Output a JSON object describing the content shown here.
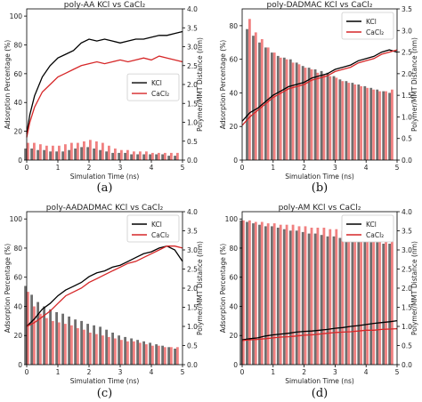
{
  "colors": {
    "kcl": "#000000",
    "cacl2": "#d62728",
    "bar_kcl": "#6e6e6e",
    "bar_cacl2": "#f08080"
  },
  "chart_data": [
    {
      "type": "bar+line",
      "title": "poly-AA KCl vs CaCl₂",
      "caption": "(a)",
      "xlabel": "Simulation Time (ns)",
      "ylabel": "Adsorption Percentage (%)",
      "y2label": "Polymer/MMT Distance (nm)",
      "xlim": [
        0,
        5
      ],
      "ylim": [
        0,
        105
      ],
      "y2lim": [
        0,
        4.0
      ],
      "xticks": [
        "0",
        "1",
        "2",
        "3",
        "4",
        "5"
      ],
      "yticks": [
        "0",
        "20",
        "40",
        "60",
        "80",
        "100"
      ],
      "y2ticks": [
        "0.0",
        "0.5",
        "1.0",
        "1.5",
        "2.0",
        "2.5",
        "3.0",
        "3.5",
        "4.0"
      ],
      "legend": {
        "position": "center-right",
        "entries": [
          "KCl",
          "CaCl₂"
        ]
      },
      "bar_x": [
        0,
        0.2,
        0.4,
        0.6,
        0.8,
        1.0,
        1.2,
        1.4,
        1.6,
        1.8,
        2.0,
        2.2,
        2.4,
        2.6,
        2.8,
        3.0,
        3.2,
        3.4,
        3.6,
        3.8,
        4.0,
        4.2,
        4.4,
        4.6,
        4.8
      ],
      "bar_series": [
        {
          "name": "KCl",
          "values": [
            8,
            8,
            7,
            7,
            6,
            6,
            6,
            7,
            8,
            9,
            9,
            8,
            7,
            6,
            5,
            5,
            5,
            4,
            4,
            4,
            4,
            4,
            4,
            3,
            3
          ]
        },
        {
          "name": "CaCl₂",
          "values": [
            12,
            12,
            11,
            10,
            10,
            10,
            11,
            12,
            12,
            13,
            14,
            13,
            12,
            10,
            8,
            7,
            7,
            6,
            6,
            6,
            5,
            5,
            5,
            5,
            5
          ]
        }
      ],
      "line_x": [
        0,
        0.1,
        0.25,
        0.5,
        0.75,
        1.0,
        1.25,
        1.5,
        1.75,
        2.0,
        2.25,
        2.5,
        2.75,
        3.0,
        3.25,
        3.5,
        3.75,
        4.0,
        4.25,
        4.5,
        4.75,
        5.0
      ],
      "line_series": [
        {
          "name": "KCl",
          "values": [
            0.7,
            1.2,
            1.7,
            2.2,
            2.5,
            2.7,
            2.8,
            2.9,
            3.1,
            3.2,
            3.15,
            3.2,
            3.15,
            3.1,
            3.15,
            3.2,
            3.2,
            3.25,
            3.3,
            3.3,
            3.35,
            3.4
          ]
        },
        {
          "name": "CaCl₂",
          "values": [
            0.6,
            1.0,
            1.4,
            1.8,
            2.0,
            2.2,
            2.3,
            2.4,
            2.5,
            2.55,
            2.6,
            2.55,
            2.6,
            2.65,
            2.6,
            2.65,
            2.7,
            2.65,
            2.75,
            2.7,
            2.65,
            2.6
          ]
        }
      ]
    },
    {
      "type": "bar+line",
      "title": "poly-DADMAC KCl vs CaCl₂",
      "caption": "(b)",
      "xlabel": "Simulation Time (ns)",
      "ylabel": "Adsorption Percentage (%)",
      "y2label": "Polymer/MMT Distance (nm)",
      "xlim": [
        0,
        5
      ],
      "ylim": [
        0,
        90
      ],
      "y2lim": [
        0,
        3.5
      ],
      "xticks": [
        "0",
        "1",
        "2",
        "3",
        "4",
        "5"
      ],
      "yticks": [
        "0",
        "20",
        "40",
        "60",
        "80"
      ],
      "y2ticks": [
        "0.0",
        "0.5",
        "1.0",
        "1.5",
        "2.0",
        "2.5",
        "3.0",
        "3.5"
      ],
      "legend": {
        "position": "top-right",
        "entries": [
          "KCl",
          "CaCl₂"
        ]
      },
      "bar_x": [
        0.2,
        0.4,
        0.6,
        0.8,
        1.0,
        1.2,
        1.4,
        1.6,
        1.8,
        2.0,
        2.2,
        2.4,
        2.6,
        2.8,
        3.0,
        3.2,
        3.4,
        3.6,
        3.8,
        4.0,
        4.2,
        4.4,
        4.6,
        4.8
      ],
      "bar_series": [
        {
          "name": "KCl",
          "values": [
            78,
            74,
            70,
            67,
            64,
            62,
            61,
            60,
            58,
            56,
            55,
            54,
            53,
            52,
            50,
            48,
            47,
            46,
            45,
            44,
            43,
            42,
            41,
            40
          ]
        },
        {
          "name": "CaCl₂",
          "values": [
            84,
            76,
            72,
            67,
            64,
            61,
            60,
            58,
            57,
            55,
            54,
            52,
            51,
            50,
            49,
            47,
            46,
            45,
            44,
            43,
            42,
            41,
            41,
            42
          ]
        }
      ],
      "line_x": [
        0,
        0.25,
        0.5,
        0.75,
        1.0,
        1.25,
        1.5,
        1.75,
        2.0,
        2.25,
        2.5,
        2.75,
        3.0,
        3.25,
        3.5,
        3.75,
        4.0,
        4.25,
        4.5,
        4.75,
        5.0
      ],
      "line_series": [
        {
          "name": "KCl",
          "values": [
            0.9,
            1.1,
            1.2,
            1.35,
            1.5,
            1.6,
            1.7,
            1.75,
            1.8,
            1.9,
            1.95,
            2.0,
            2.1,
            2.15,
            2.2,
            2.3,
            2.35,
            2.4,
            2.5,
            2.55,
            2.5
          ]
        },
        {
          "name": "CaCl₂",
          "values": [
            0.8,
            1.0,
            1.15,
            1.3,
            1.45,
            1.55,
            1.65,
            1.7,
            1.75,
            1.85,
            1.9,
            1.95,
            2.05,
            2.1,
            2.15,
            2.25,
            2.3,
            2.35,
            2.45,
            2.5,
            2.55
          ]
        }
      ]
    },
    {
      "type": "bar+line",
      "title": "poly-AADADMAC KCl vs CaCl₂",
      "caption": "(c)",
      "xlabel": "Simulation Time (ns)",
      "ylabel": "Adsorption Percentage (%)",
      "y2label": "Polymer/MMT Distance (nm)",
      "xlim": [
        0,
        5
      ],
      "ylim": [
        0,
        105
      ],
      "y2lim": [
        0,
        4.0
      ],
      "xticks": [
        "0",
        "1",
        "2",
        "3",
        "4",
        "5"
      ],
      "yticks": [
        "0",
        "20",
        "40",
        "60",
        "80",
        "100"
      ],
      "y2ticks": [
        "0.0",
        "0.5",
        "1.0",
        "1.5",
        "2.0",
        "2.5",
        "3.0",
        "3.5",
        "4.0"
      ],
      "legend": {
        "position": "top-right",
        "entries": [
          "KCl",
          "CaCl₂"
        ]
      },
      "bar_x": [
        0,
        0.2,
        0.4,
        0.6,
        0.8,
        1.0,
        1.2,
        1.4,
        1.6,
        1.8,
        2.0,
        2.2,
        2.4,
        2.6,
        2.8,
        3.0,
        3.2,
        3.4,
        3.6,
        3.8,
        4.0,
        4.2,
        4.4,
        4.6,
        4.8
      ],
      "bar_series": [
        {
          "name": "KCl",
          "values": [
            54,
            48,
            43,
            40,
            38,
            36,
            35,
            33,
            31,
            30,
            28,
            27,
            26,
            24,
            22,
            20,
            19,
            18,
            17,
            16,
            15,
            14,
            13,
            12,
            11
          ]
        },
        {
          "name": "CaCl₂",
          "values": [
            50,
            40,
            35,
            32,
            30,
            29,
            28,
            27,
            25,
            24,
            22,
            21,
            20,
            19,
            18,
            17,
            16,
            16,
            15,
            14,
            13,
            13,
            12,
            12,
            12
          ]
        }
      ],
      "line_x": [
        0,
        0.25,
        0.5,
        0.75,
        1.0,
        1.25,
        1.5,
        1.75,
        2.0,
        2.25,
        2.5,
        2.75,
        3.0,
        3.25,
        3.5,
        3.75,
        4.0,
        4.25,
        4.5,
        4.75,
        5.0
      ],
      "line_series": [
        {
          "name": "KCl",
          "values": [
            1.0,
            1.2,
            1.45,
            1.6,
            1.8,
            1.95,
            2.05,
            2.15,
            2.3,
            2.4,
            2.45,
            2.55,
            2.6,
            2.7,
            2.8,
            2.9,
            2.95,
            3.05,
            3.1,
            3.0,
            2.7
          ]
        },
        {
          "name": "CaCl₂",
          "values": [
            1.0,
            1.1,
            1.25,
            1.4,
            1.6,
            1.8,
            1.9,
            2.0,
            2.15,
            2.25,
            2.35,
            2.45,
            2.55,
            2.65,
            2.7,
            2.8,
            2.9,
            3.0,
            3.1,
            3.1,
            3.05
          ]
        }
      ]
    },
    {
      "type": "bar+line",
      "title": "poly-AM KCl vs CaCl₂",
      "caption": "(d)",
      "xlabel": "Simulation Time (ns)",
      "ylabel": "Adsorption Percentage (%)",
      "y2label": "Polymer/MMT Distance (nm)",
      "xlim": [
        0,
        5
      ],
      "ylim": [
        0,
        105
      ],
      "y2lim": [
        0,
        4.0
      ],
      "xticks": [
        "0",
        "1",
        "2",
        "3",
        "4",
        "5"
      ],
      "yticks": [
        "0",
        "20",
        "40",
        "60",
        "80",
        "100"
      ],
      "y2ticks": [
        "0.0",
        "0.5",
        "1.0",
        "1.5",
        "2.0",
        "2.5",
        "3.0",
        "3.5",
        "4.0"
      ],
      "legend": {
        "position": "top-right",
        "entries": [
          "KCl",
          "CaCl₂"
        ]
      },
      "bar_x": [
        0,
        0.2,
        0.4,
        0.6,
        0.8,
        1.0,
        1.2,
        1.4,
        1.6,
        1.8,
        2.0,
        2.2,
        2.4,
        2.6,
        2.8,
        3.0,
        3.2,
        3.4,
        3.6,
        3.8,
        4.0,
        4.2,
        4.4,
        4.6,
        4.8
      ],
      "bar_series": [
        {
          "name": "KCl",
          "values": [
            99,
            98,
            97,
            96,
            95,
            95,
            94,
            93,
            92,
            92,
            91,
            90,
            90,
            89,
            88,
            88,
            87,
            86,
            86,
            85,
            85,
            84,
            84,
            83,
            83
          ]
        },
        {
          "name": "CaCl₂",
          "values": [
            99,
            99,
            98,
            98,
            97,
            97,
            96,
            96,
            96,
            95,
            95,
            94,
            94,
            94,
            93,
            93,
            92,
            92,
            92,
            91,
            91,
            90,
            90,
            90,
            89
          ]
        }
      ],
      "line_x": [
        0,
        0.25,
        0.5,
        0.75,
        1.0,
        1.25,
        1.5,
        1.75,
        2.0,
        2.25,
        2.5,
        2.75,
        3.0,
        3.25,
        3.5,
        3.75,
        4.0,
        4.25,
        4.5,
        4.75,
        5.0
      ],
      "line_series": [
        {
          "name": "KCl",
          "values": [
            0.65,
            0.68,
            0.7,
            0.75,
            0.78,
            0.8,
            0.82,
            0.85,
            0.87,
            0.88,
            0.9,
            0.92,
            0.95,
            0.97,
            1.0,
            1.02,
            1.05,
            1.08,
            1.1,
            1.12,
            1.15
          ]
        },
        {
          "name": "CaCl₂",
          "values": [
            0.63,
            0.65,
            0.66,
            0.68,
            0.7,
            0.72,
            0.73,
            0.75,
            0.77,
            0.78,
            0.8,
            0.82,
            0.84,
            0.85,
            0.86,
            0.88,
            0.9,
            0.9,
            0.92,
            0.93,
            0.94
          ]
        }
      ]
    }
  ]
}
